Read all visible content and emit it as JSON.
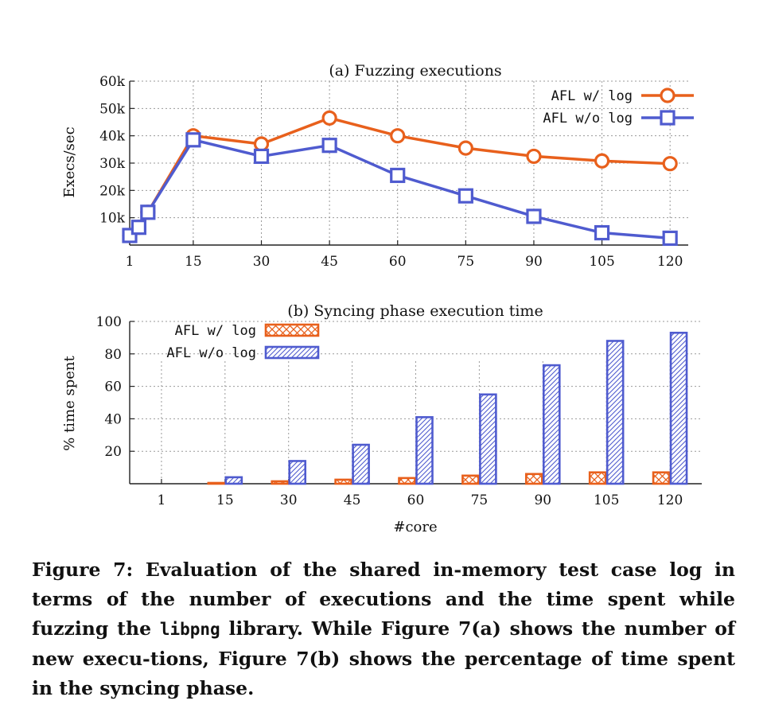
{
  "chart_data": [
    {
      "type": "line",
      "title": "(a) Fuzzing executions",
      "xlabel": "",
      "ylabel": "Execs/sec",
      "x": [
        1,
        3,
        5,
        15,
        30,
        45,
        60,
        75,
        90,
        105,
        120
      ],
      "xticks": [
        "1",
        "15",
        "30",
        "45",
        "60",
        "75",
        "90",
        "105",
        "120"
      ],
      "xtick_values": [
        1,
        15,
        30,
        45,
        60,
        75,
        90,
        105,
        120
      ],
      "xlim": [
        1,
        124
      ],
      "yticks": [
        "10k",
        "20k",
        "30k",
        "40k",
        "50k",
        "60k"
      ],
      "ytick_values": [
        10000,
        20000,
        30000,
        40000,
        50000,
        60000
      ],
      "ylim": [
        0,
        60000
      ],
      "grid": true,
      "legend_position": "top-right",
      "series": [
        {
          "name": "AFL w/  log",
          "color": "#e8601c",
          "marker": "circle",
          "values": [
            3500,
            6500,
            12000,
            40000,
            37000,
            46500,
            40000,
            35500,
            32500,
            30800,
            29800
          ]
        },
        {
          "name": "AFL w/o log",
          "color": "#4f5bcf",
          "marker": "square",
          "values": [
            3500,
            6500,
            12000,
            38500,
            32500,
            36500,
            25500,
            18000,
            10500,
            4500,
            2500
          ]
        }
      ]
    },
    {
      "type": "bar",
      "title": "(b) Syncing phase execution time",
      "xlabel": "#core",
      "ylabel": "% time spent",
      "categories": [
        "1",
        "15",
        "30",
        "45",
        "60",
        "75",
        "90",
        "105",
        "120"
      ],
      "yticks": [
        "20",
        "40",
        "60",
        "80",
        "100"
      ],
      "ytick_values": [
        20,
        40,
        60,
        80,
        100
      ],
      "ylim": [
        0,
        100
      ],
      "grid": true,
      "legend_position": "top-left",
      "series": [
        {
          "name": "AFL w/  log",
          "color": "#e8601c",
          "pattern": "crosshatch",
          "values": [
            0,
            0.5,
            1.5,
            2.5,
            3.5,
            5,
            6,
            7,
            7
          ]
        },
        {
          "name": "AFL w/o log",
          "color": "#4f5bcf",
          "pattern": "diagonal",
          "values": [
            0,
            4,
            14,
            24,
            41,
            55,
            73,
            88,
            93
          ]
        }
      ]
    }
  ],
  "caption": {
    "part1": "Figure 7: Evaluation of the shared in-memory test case log in terms of the number of executions and the time spent while fuzzing the ",
    "code": "libpng",
    "part2": " library. While Figure 7(a) shows the number of new execu-tions, Figure 7(b) shows the percentage of time spent in the syncing phase."
  }
}
